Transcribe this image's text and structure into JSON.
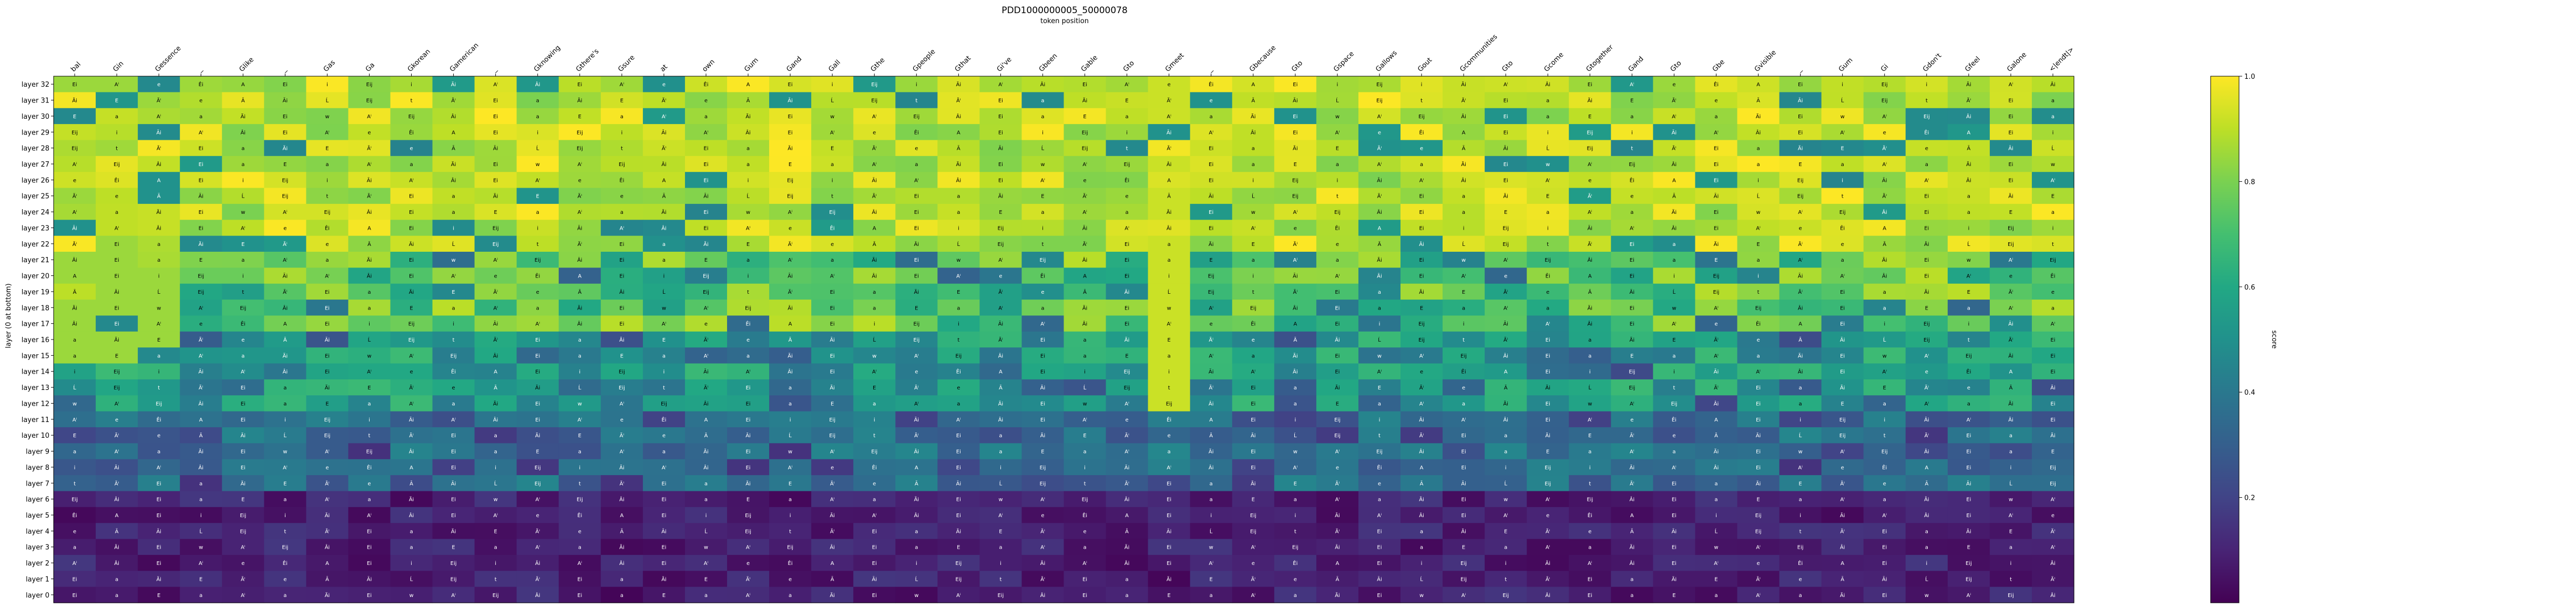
{
  "chart_data": {
    "type": "heatmap",
    "title": "PDD1000000005_50000078",
    "xlabel": "token position",
    "ylabel": "layer (0 at bottom)",
    "colorbar": {
      "label": "score",
      "ticks": [
        "0.2",
        "0.4",
        "0.6",
        "0.8",
        "1.0"
      ],
      "min": 0.0,
      "max": 1.0
    },
    "tokens": [
      "bal",
      "Gin",
      "Gessence",
      "_",
      "Glike",
      "_",
      "Gas",
      "Ga",
      "Gkorean",
      "Gamerican",
      "_",
      "Gknowing",
      "Gthere's",
      "Gsure",
      "at",
      "own",
      "Gum",
      "Gand",
      "Gall",
      "Gthe",
      "Gpeople",
      "Gthat",
      "Gi've",
      "Gbeen",
      "Gable",
      "Gto",
      "Gmeet",
      "_",
      "Gbecause",
      "Gto",
      "Gspace",
      "Gallows",
      "Gout",
      "Gcommunities",
      "Gto",
      "Gcome",
      "Gtogether",
      "Gand",
      "Gto",
      "Gbe",
      "Gvisible",
      "_",
      "Gum",
      "Gi",
      "Gdon't",
      "Gfeel",
      "Galone",
      "<|endt|>"
    ],
    "layers": [
      "layer 32",
      "layer 31",
      "layer 30",
      "layer 29",
      "layer 28",
      "layer 27",
      "layer 26",
      "layer 25",
      "layer 24",
      "layer 23",
      "layer 22",
      "layer 21",
      "layer 20",
      "layer 19",
      "layer 18",
      "layer 17",
      "layer 16",
      "layer 15",
      "layer 14",
      "layer 13",
      "layer 12",
      "layer 11",
      "layer 10",
      "layer 9",
      "layer 8",
      "layer 7",
      "layer 6",
      "layer 5",
      "layer 4",
      "layer 3",
      "layer 2",
      "layer 1",
      "layer 0"
    ],
    "cell_labels": [
      "Ei",
      "Ei",
      "Eij",
      "Aⁱ",
      "a",
      "Âi",
      "e",
      "Ãi",
      "Ei",
      "Êi",
      "E",
      "a",
      "A",
      "Ãⁱ",
      "E",
      "Ei",
      "e",
      "a",
      "i",
      "Ā",
      "Aⁱ",
      "Eij",
      "Āi",
      "a",
      "i",
      "Ĺ",
      "Ãi",
      "Āi",
      "Eij",
      "Ei",
      "Aⁱ",
      "t",
      "w",
      "Âi",
      "Ãⁱ",
      "Aⁱ"
    ]
  }
}
